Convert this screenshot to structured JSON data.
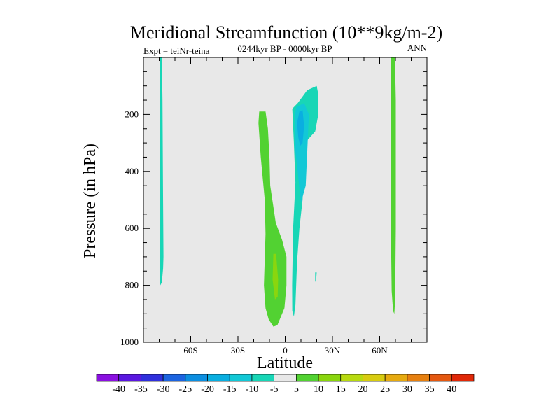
{
  "chart_data": {
    "type": "heatmap",
    "title": "Meridional Streamfunction (10**9kg/m-2)",
    "subtitle": "0244kyr BP - 0000kyr BP",
    "left_annotation": "Expt = teiNr-teina",
    "right_annotation": "ANN",
    "xlabel": "Latitude",
    "ylabel": "Pressure (in hPa)",
    "xlim": [
      -90,
      90
    ],
    "ylim": [
      1000,
      0
    ],
    "x_ticks": [
      {
        "value": -60,
        "label": "60S"
      },
      {
        "value": -30,
        "label": "30S"
      },
      {
        "value": 0,
        "label": "0"
      },
      {
        "value": 30,
        "label": "30N"
      },
      {
        "value": 60,
        "label": "60N"
      }
    ],
    "y_ticks": [
      {
        "value": 200,
        "label": "200"
      },
      {
        "value": 400,
        "label": "400"
      },
      {
        "value": 600,
        "label": "600"
      },
      {
        "value": 800,
        "label": "800"
      },
      {
        "value": 1000,
        "label": "1000"
      }
    ],
    "background_color": "#e8e8e8",
    "colorbar": {
      "labels": [
        "-40",
        "-35",
        "-30",
        "-25",
        "-20",
        "-15",
        "-10",
        "-5",
        "5",
        "10",
        "15",
        "20",
        "25",
        "30",
        "35",
        "40"
      ],
      "colors": [
        "#8a10e0",
        "#5a18e0",
        "#2f30dc",
        "#1c64e0",
        "#0c8ee0",
        "#0aaee0",
        "#12c8d6",
        "#18d6b6",
        "#e8e8e8",
        "#52d232",
        "#8ad60e",
        "#b8da10",
        "#d8cc10",
        "#e6aa10",
        "#e68010",
        "#e45810",
        "#e02808"
      ]
    },
    "regions": [
      {
        "name": "sh-high-lat-negative",
        "color": "#18d6b6",
        "points": [
          [
            -79.5,
            0
          ],
          [
            -78.3,
            0
          ],
          [
            -77.9,
            150
          ],
          [
            -77.6,
            450
          ],
          [
            -77.3,
            700
          ],
          [
            -77.5,
            740
          ],
          [
            -78.3,
            790
          ],
          [
            -79.3,
            800
          ],
          [
            -79.8,
            740
          ],
          [
            -79.7,
            450
          ],
          [
            -79.5,
            150
          ]
        ]
      },
      {
        "name": "tropical-positive-cell",
        "color": "#52d232",
        "points": [
          [
            -16.5,
            190
          ],
          [
            -12.5,
            190
          ],
          [
            -11,
            250
          ],
          [
            -10,
            350
          ],
          [
            -9.5,
            450
          ],
          [
            -6,
            580
          ],
          [
            -2,
            640
          ],
          [
            0.8,
            700
          ],
          [
            0.8,
            800
          ],
          [
            -0.5,
            880
          ],
          [
            -5,
            940
          ],
          [
            -7.5,
            945
          ],
          [
            -10.5,
            920
          ],
          [
            -12.5,
            880
          ],
          [
            -13.5,
            800
          ],
          [
            -12.5,
            620
          ],
          [
            -13,
            500
          ],
          [
            -15.5,
            350
          ],
          [
            -17,
            230
          ]
        ]
      },
      {
        "name": "tropical-positive-core",
        "color": "#8ad60e",
        "points": [
          [
            -7.5,
            690
          ],
          [
            -5.8,
            690
          ],
          [
            -4.5,
            780
          ],
          [
            -4.8,
            840
          ],
          [
            -6.5,
            850
          ],
          [
            -8,
            780
          ]
        ]
      },
      {
        "name": "nh-subtropical-negative-cell",
        "color": "#18d6b6",
        "points": [
          [
            4.5,
            180
          ],
          [
            8,
            160
          ],
          [
            14,
            115
          ],
          [
            20,
            100
          ],
          [
            21,
            130
          ],
          [
            21,
            200
          ],
          [
            19,
            260
          ],
          [
            12.5,
            300
          ],
          [
            12,
            400
          ],
          [
            11,
            500
          ],
          [
            9,
            600
          ],
          [
            7.5,
            720
          ],
          [
            6.5,
            870
          ],
          [
            5.5,
            910
          ],
          [
            4.5,
            890
          ],
          [
            4.4,
            800
          ],
          [
            5,
            600
          ],
          [
            6.5,
            440
          ],
          [
            5.5,
            300
          ]
        ]
      },
      {
        "name": "nh-subtropical-negative-core-1",
        "color": "#12c8d6",
        "points": [
          [
            6,
            210
          ],
          [
            7,
            175
          ],
          [
            12,
            160
          ],
          [
            15,
            200
          ],
          [
            14,
            330
          ],
          [
            13,
            450
          ],
          [
            10,
            510
          ],
          [
            8.5,
            430
          ],
          [
            6.5,
            330
          ]
        ]
      },
      {
        "name": "nh-subtropical-negative-core-2",
        "color": "#0aaee0",
        "points": [
          [
            7.5,
            230
          ],
          [
            9,
            190
          ],
          [
            11,
            185
          ],
          [
            12,
            240
          ],
          [
            11,
            300
          ],
          [
            9.5,
            310
          ],
          [
            8.3,
            280
          ]
        ]
      },
      {
        "name": "nh-small-patch",
        "color": "#18d6b6",
        "points": [
          [
            19,
            755
          ],
          [
            20,
            755
          ],
          [
            19.5,
            790
          ],
          [
            19,
            785
          ]
        ]
      },
      {
        "name": "nh-high-lat-positive",
        "color": "#52d232",
        "points": [
          [
            67.3,
            0
          ],
          [
            69.7,
            0
          ],
          [
            70.2,
            150
          ],
          [
            70.2,
            600
          ],
          [
            69.8,
            850
          ],
          [
            69.3,
            900
          ],
          [
            68.5,
            890
          ],
          [
            67.6,
            820
          ],
          [
            67.1,
            600
          ],
          [
            67.1,
            150
          ]
        ]
      }
    ]
  }
}
